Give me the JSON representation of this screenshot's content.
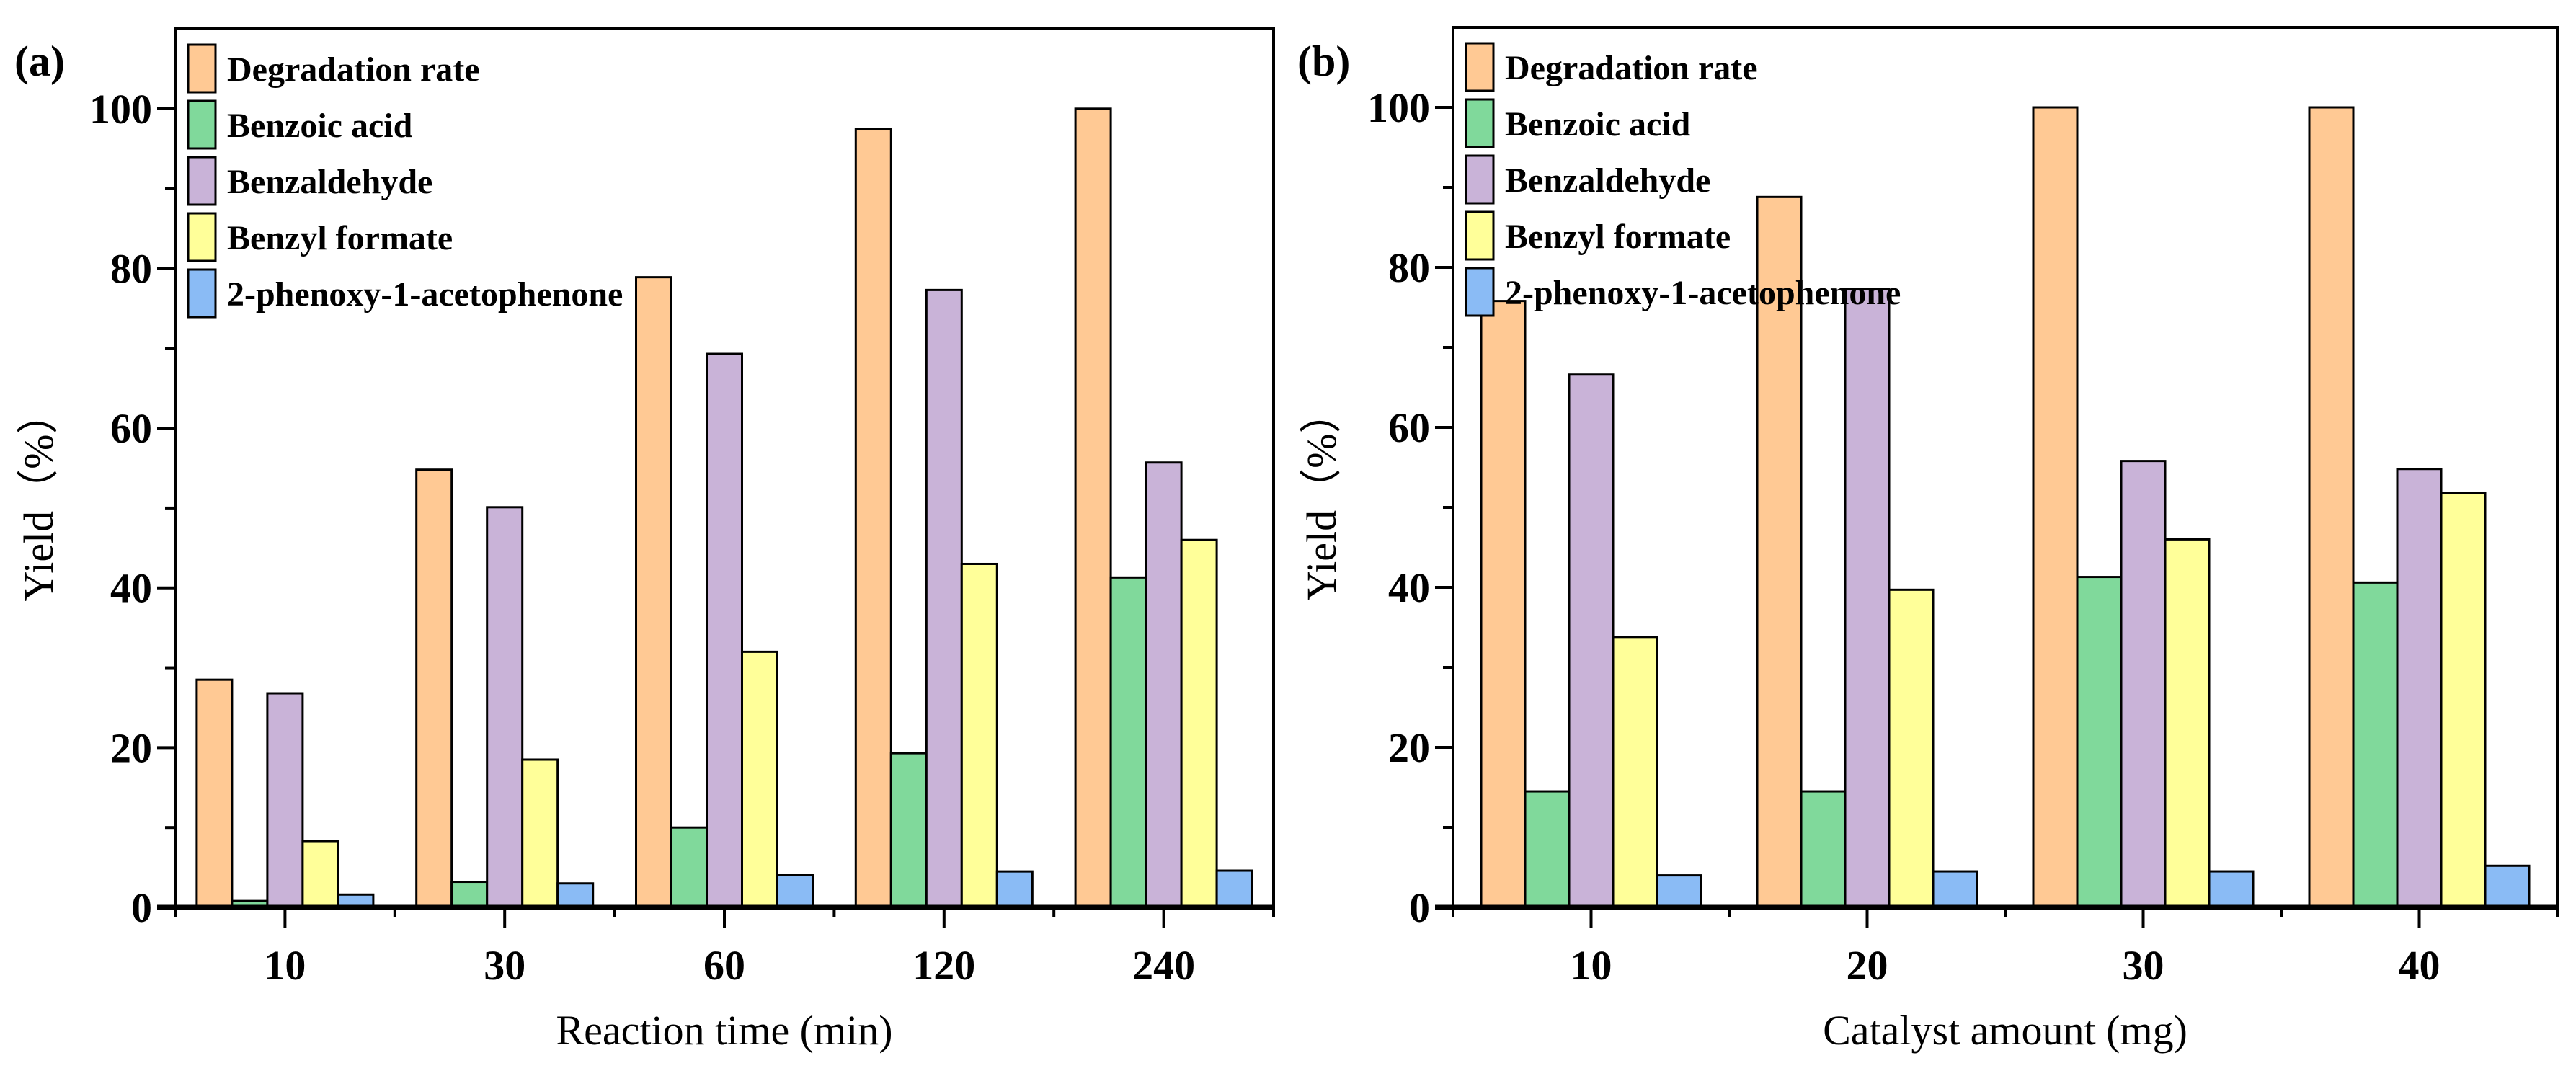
{
  "chart_data": [
    {
      "type": "bar",
      "panel_label": "(a)",
      "xlabel": "Reaction time (min)",
      "ylabel": "Yield（%）",
      "ylim": [
        0,
        110
      ],
      "yticks": [
        "0",
        "20",
        "40",
        "60",
        "80",
        "100"
      ],
      "categories": [
        "10",
        "30",
        "60",
        "120",
        "240"
      ],
      "legend_position": "top-left",
      "series": [
        {
          "name": "Degradation rate",
          "color": "#FFC994",
          "values": [
            28.5,
            54.8,
            78.9,
            97.5,
            100
          ]
        },
        {
          "name": "Benzoic acid",
          "color": "#80D99B",
          "values": [
            0.8,
            3.2,
            10.0,
            19.3,
            41.3
          ]
        },
        {
          "name": "Benzaldehyde",
          "color": "#C9B3D8",
          "values": [
            26.8,
            50.1,
            69.3,
            77.3,
            55.7
          ]
        },
        {
          "name": "Benzyl formate",
          "color": "#FFFF99",
          "values": [
            8.3,
            18.5,
            32.0,
            43.0,
            46.0
          ]
        },
        {
          "name": "2-phenoxy-1-acetophenone",
          "color": "#8ABBF5",
          "values": [
            1.6,
            3.0,
            4.1,
            4.5,
            4.6
          ]
        }
      ]
    },
    {
      "type": "bar",
      "panel_label": "(b)",
      "xlabel": "Catalyst amount (mg)",
      "ylabel": "Yield（%）",
      "ylim": [
        0,
        110
      ],
      "yticks": [
        "0",
        "20",
        "40",
        "60",
        "80",
        "100"
      ],
      "categories": [
        "10",
        "20",
        "30",
        "40"
      ],
      "legend_position": "top-left",
      "series": [
        {
          "name": "Degradation rate",
          "color": "#FFC994",
          "values": [
            75.8,
            88.8,
            100,
            100
          ]
        },
        {
          "name": "Benzoic acid",
          "color": "#80D99B",
          "values": [
            14.5,
            14.5,
            41.3,
            40.6
          ]
        },
        {
          "name": "Benzaldehyde",
          "color": "#C9B3D8",
          "values": [
            66.6,
            77.3,
            55.8,
            54.8
          ]
        },
        {
          "name": "Benzyl formate",
          "color": "#FFFF99",
          "values": [
            33.8,
            39.7,
            46.0,
            51.8
          ]
        },
        {
          "name": "2-phenoxy-1-acetophenone",
          "color": "#8ABBF5",
          "values": [
            4.0,
            4.5,
            4.5,
            5.2
          ]
        }
      ]
    }
  ]
}
